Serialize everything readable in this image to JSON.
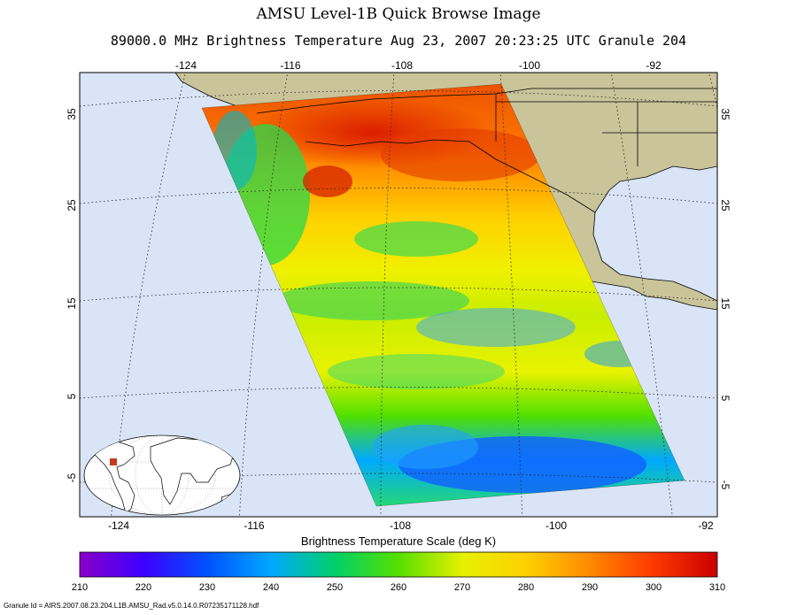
{
  "header": {
    "title": "AMSU Level-1B Quick Browse Image",
    "subtitle": "89000.0 MHz Brightness Temperature   Aug 23, 2007 20:23:25 UTC  Granule 204"
  },
  "map": {
    "lon_ticks_top": [
      "-124",
      "-116",
      "-108",
      "-100",
      "-92"
    ],
    "lon_ticks_bottom": [
      "-124",
      "-116",
      "-108",
      "-100",
      "-92"
    ],
    "lat_ticks_left": [
      "35",
      "25",
      "15",
      "5",
      "-5"
    ],
    "lat_ticks_right": [
      "35",
      "25",
      "15",
      "5",
      "-5"
    ],
    "colors": {
      "ocean": "#d9e4f6",
      "land": "#c9c49a",
      "graticule": "#222222"
    }
  },
  "colorbar": {
    "label": "Brightness Temperature Scale (deg K)",
    "ticks": [
      "210",
      "220",
      "230",
      "240",
      "250",
      "260",
      "270",
      "280",
      "290",
      "300",
      "310"
    ],
    "range": [
      210,
      310
    ],
    "stops": [
      "#8a00c8",
      "#3c00ff",
      "#0052ff",
      "#00a8ff",
      "#00d06a",
      "#55e000",
      "#e6f000",
      "#ffd000",
      "#ff8a00",
      "#ff3800",
      "#c80000"
    ]
  },
  "footer": {
    "granule_id": "Granule Id = AIRS.2007.08.23.204.L1B.AMSU_Rad.v5.0.14.0.R07235171128.hdf"
  }
}
